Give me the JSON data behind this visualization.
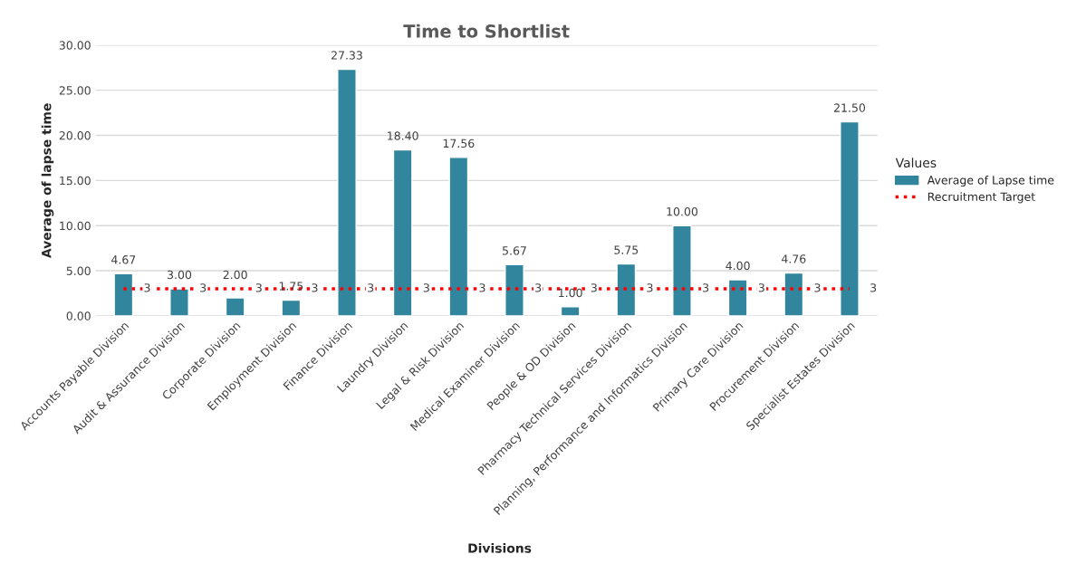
{
  "chart_data": {
    "type": "bar",
    "title": "Time to Shortlist",
    "xlabel": "Divisions",
    "ylabel": "Average of lapse time",
    "legend_title": "Values",
    "categories": [
      "Accounts Payable Division",
      "Audit & Assurance Division",
      "Corporate Division",
      "Employment Division",
      "Finance Division",
      "Laundry Division",
      "Legal & Risk Division",
      "Medical Examiner Division",
      "People & OD Division",
      "Pharmacy Technical Services Division",
      "Planning, Performance and Informatics Division",
      "Primary Care Division",
      "Procurement Division",
      "Specialist Estates Division"
    ],
    "series": [
      {
        "name": "Average of Lapse time",
        "color": "#31859c",
        "values": [
          4.67,
          3.0,
          2.0,
          1.75,
          27.33,
          18.4,
          17.56,
          5.67,
          1.0,
          5.75,
          10.0,
          4.0,
          4.76,
          21.5
        ],
        "value_labels": [
          "4.67",
          "3.00",
          "2.00",
          "1.75",
          "27.33",
          "18.40",
          "17.56",
          "5.67",
          "1.00",
          "5.75",
          "10.00",
          "4.00",
          "4.76",
          "21.50"
        ]
      },
      {
        "name": "Recruitment Target",
        "type": "line",
        "color": "#ff0000",
        "line_style": "dotted",
        "values": [
          3,
          3,
          3,
          3,
          3,
          3,
          3,
          3,
          3,
          3,
          3,
          3,
          3,
          3
        ],
        "value_labels": [
          "3",
          "3",
          "3",
          "3",
          "3",
          "3",
          "3",
          "3",
          "3",
          "3",
          "3",
          "3",
          "3",
          "3"
        ]
      }
    ],
    "ylim": [
      0,
      30
    ],
    "yticks": [
      {
        "value": 0,
        "label": "0.00"
      },
      {
        "value": 5,
        "label": "5.00"
      },
      {
        "value": 10,
        "label": "10.00"
      },
      {
        "value": 15,
        "label": "15.00"
      },
      {
        "value": 20,
        "label": "20.00"
      },
      {
        "value": 25,
        "label": "25.00"
      },
      {
        "value": 30,
        "label": "30.00"
      }
    ],
    "grid": "y",
    "legend": "right"
  }
}
